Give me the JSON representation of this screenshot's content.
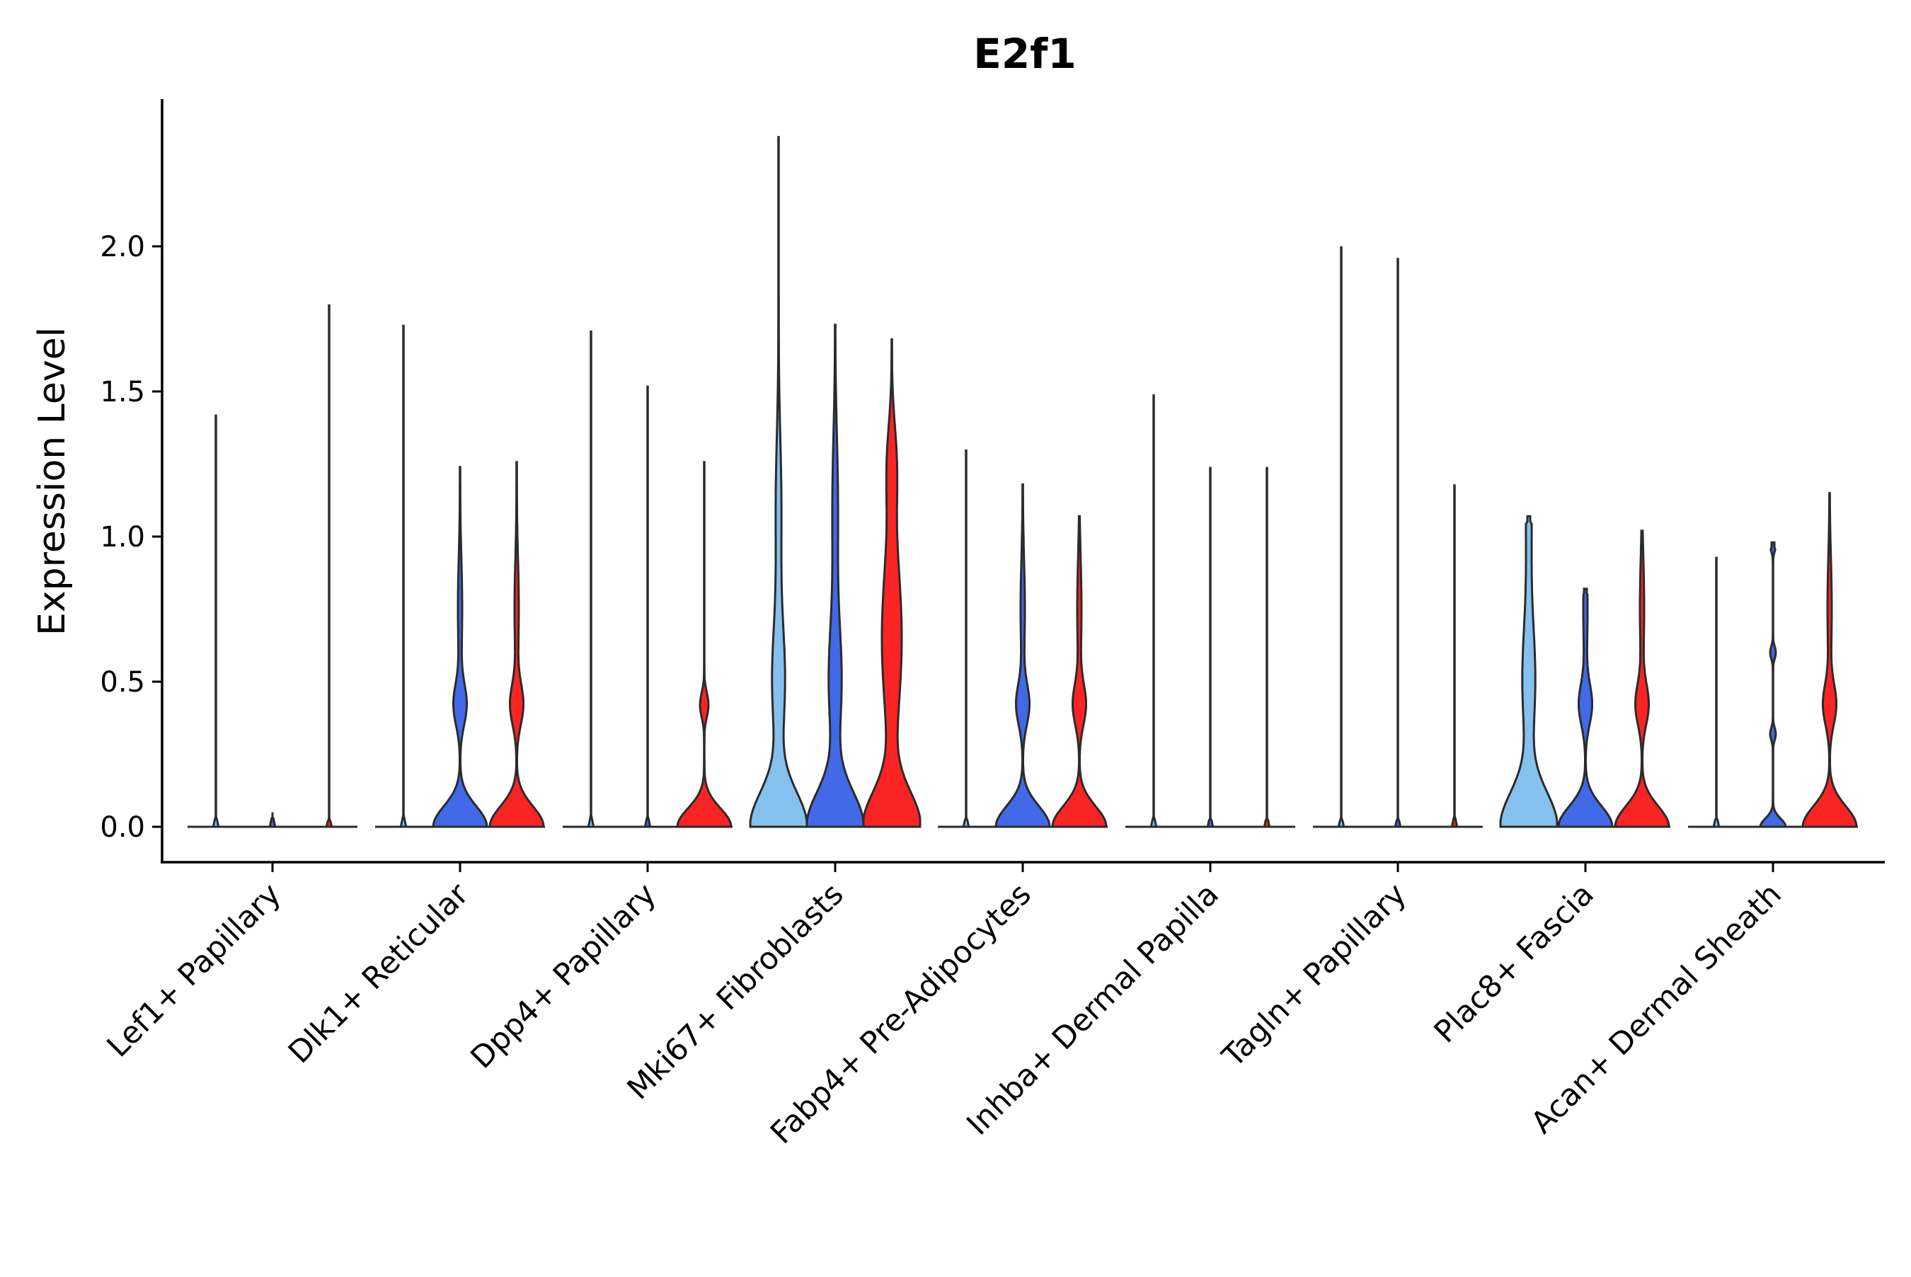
{
  "chart_data": {
    "type": "violin",
    "title": "E2f1",
    "xlabel": "",
    "ylabel": "Expression Level",
    "ylim": [
      -0.12,
      2.5
    ],
    "yticks": [
      "0.0",
      "0.5",
      "1.0",
      "1.5",
      "2.0"
    ],
    "ytick_values": [
      0.0,
      0.5,
      1.0,
      1.5,
      2.0
    ],
    "grid": false,
    "legend": "none",
    "group_colors": [
      "#84c1ee",
      "#4169e8",
      "#fb2424"
    ],
    "categories": [
      "Lef1+ Papillary",
      "Dlk1+ Reticular",
      "Dpp4+ Papillary",
      "Mki67+ Fibroblasts",
      "Fabp4+ Pre-Adipocytes",
      "Inhba+ Dermal Papilla",
      "Tagln+ Papillary",
      "Plac8+ Fascia",
      "Acan+ Dermal Sheath"
    ],
    "violins": [
      [
        {
          "max": 1.42,
          "profile": "flat"
        },
        {
          "max": 0.0,
          "profile": "flat"
        },
        {
          "max": 1.8,
          "profile": "flat"
        }
      ],
      [
        {
          "max": 1.73,
          "profile": "flat"
        },
        {
          "max": 1.24,
          "profile": "mid"
        },
        {
          "max": 1.26,
          "profile": "mid"
        }
      ],
      [
        {
          "max": 1.71,
          "profile": "flat"
        },
        {
          "max": 1.52,
          "profile": "flat"
        },
        {
          "max": 1.26,
          "profile": "low"
        }
      ],
      [
        {
          "max": 2.38,
          "profile": "high"
        },
        {
          "max": 1.73,
          "profile": "high"
        },
        {
          "max": 1.68,
          "profile": "highwide"
        }
      ],
      [
        {
          "max": 1.3,
          "profile": "flat"
        },
        {
          "max": 1.18,
          "profile": "mid"
        },
        {
          "max": 1.07,
          "profile": "mid"
        }
      ],
      [
        {
          "max": 1.49,
          "profile": "flat"
        },
        {
          "max": 1.24,
          "profile": "flat"
        },
        {
          "max": 1.24,
          "profile": "flat"
        }
      ],
      [
        {
          "max": 2.0,
          "profile": "flat"
        },
        {
          "max": 1.96,
          "profile": "flat"
        },
        {
          "max": 1.18,
          "profile": "flat"
        }
      ],
      [
        {
          "max": 1.07,
          "profile": "high"
        },
        {
          "max": 0.82,
          "profile": "mid"
        },
        {
          "max": 1.02,
          "profile": "mid"
        }
      ],
      [
        {
          "max": 0.93,
          "profile": "flat"
        },
        {
          "max": 0.98,
          "profile": "sparse"
        },
        {
          "max": 1.15,
          "profile": "mid"
        }
      ]
    ]
  }
}
